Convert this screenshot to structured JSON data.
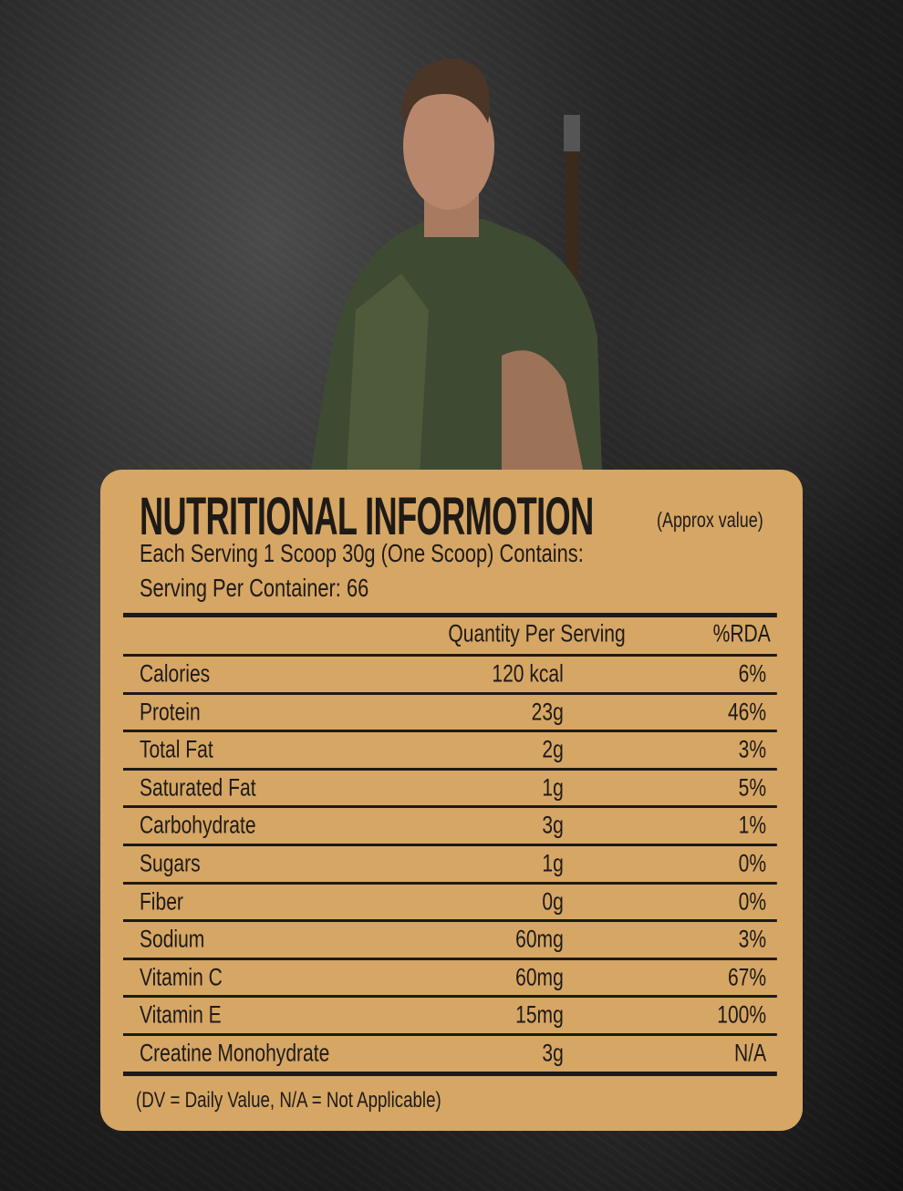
{
  "card": {
    "title": "NUTRITIONAL INFORMOTION",
    "title_note": "(Approx value)",
    "serving_line": "Each Serving 1 Scoop 30g (One Scoop) Contains:",
    "servings_per_container": "Serving Per Container: 66",
    "columns": [
      "",
      "Quantity Per Serving",
      "%RDA"
    ],
    "rows": [
      {
        "nutrient": "Calories",
        "quantity": "120 kcal",
        "rda": "6%"
      },
      {
        "nutrient": "Protein",
        "quantity": "23g",
        "rda": "46%"
      },
      {
        "nutrient": "Total Fat",
        "quantity": "2g",
        "rda": "3%"
      },
      {
        "nutrient": "Saturated Fat",
        "quantity": "1g",
        "rda": "5%"
      },
      {
        "nutrient": "Carbohydrate",
        "quantity": "3g",
        "rda": "1%"
      },
      {
        "nutrient": "Sugars",
        "quantity": "1g",
        "rda": "0%"
      },
      {
        "nutrient": "Fiber",
        "quantity": "0g",
        "rda": "0%"
      },
      {
        "nutrient": "Sodium",
        "quantity": "60mg",
        "rda": "3%"
      },
      {
        "nutrient": "Vitamin C",
        "quantity": "60mg",
        "rda": "67%"
      },
      {
        "nutrient": "Vitamin E",
        "quantity": "15mg",
        "rda": "100%"
      },
      {
        "nutrient": "Creatine Monohydrate",
        "quantity": "3g",
        "rda": "N/A"
      }
    ],
    "footnote": "(DV = Daily Value, N/A = Not Applicable)"
  },
  "colors": {
    "card": "#d6a665",
    "text": "#1e1a16",
    "background": "#1c1c1c"
  }
}
